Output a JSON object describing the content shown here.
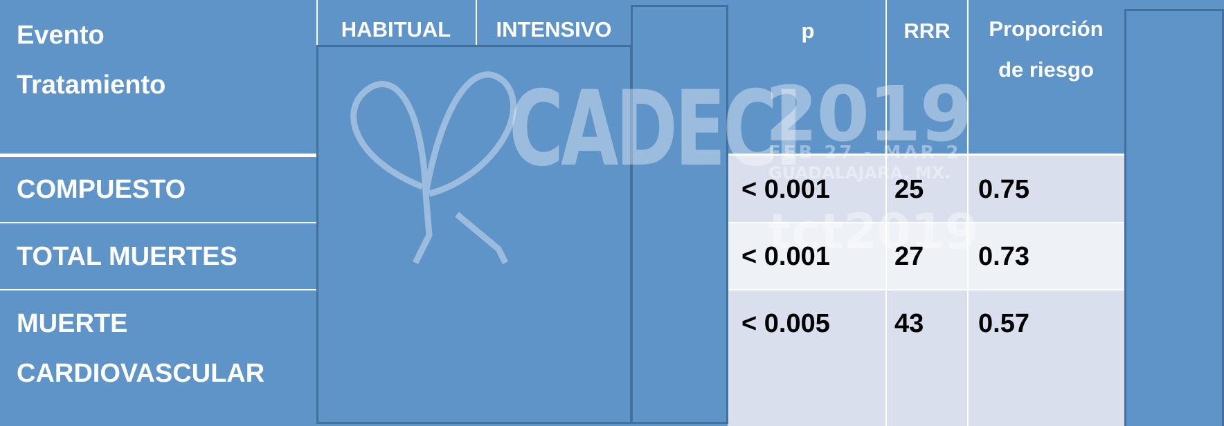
{
  "header": {
    "event_lines": [
      "Evento",
      "Tratamiento"
    ],
    "columns": [
      "HABITUAL",
      "INTENSIVO",
      "p",
      "RRR"
    ],
    "risk_lines": [
      "Proporción",
      "de riesgo"
    ]
  },
  "table": {
    "rows": [
      {
        "label_lines": [
          "COMPUESTO"
        ],
        "p": "< 0.001",
        "rrr": 25,
        "risk": 0.75
      },
      {
        "label_lines": [
          "TOTAL MUERTES"
        ],
        "p": "< 0.001",
        "rrr": 27,
        "risk": 0.73
      },
      {
        "label_lines": [
          "MUERTE",
          "CARDIOVASCULAR"
        ],
        "p": "< 0.005",
        "rrr": 43,
        "risk": 0.57
      }
    ]
  },
  "watermark": [
    "CADECI",
    "2019",
    "FEB 27 - MAR 2",
    "GUADALAJARA, MX.",
    "tct2019"
  ]
}
